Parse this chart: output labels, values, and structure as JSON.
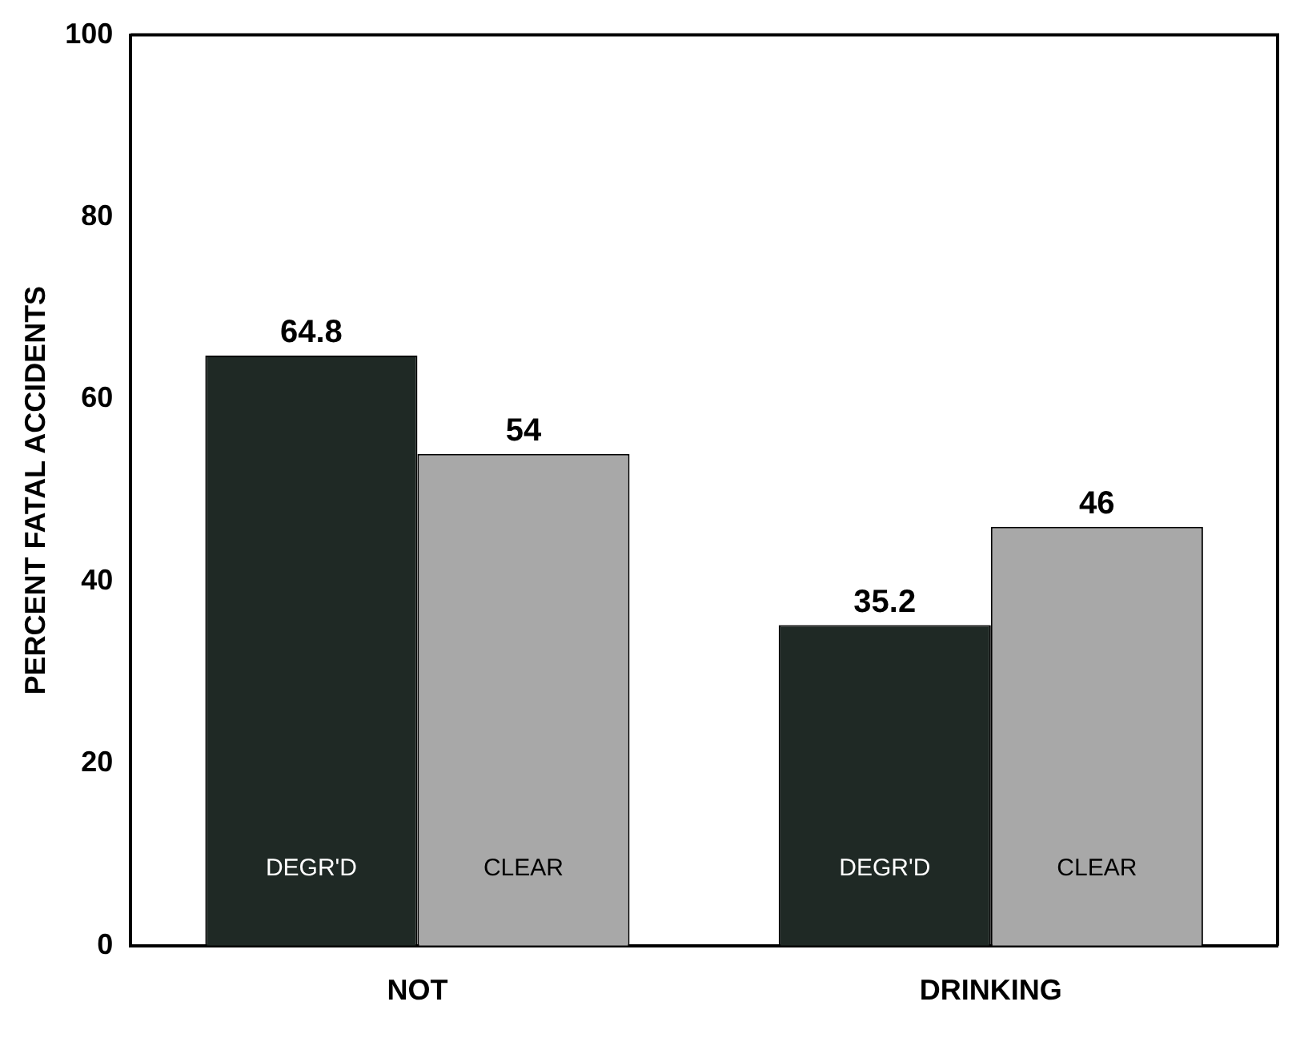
{
  "chart_data": {
    "type": "bar",
    "ylabel": "PERCENT FATAL ACCIDENTS",
    "categories": [
      "NOT",
      "DRINKING"
    ],
    "series": [
      {
        "name": "DEGR'D",
        "color": "#1f2925",
        "values": [
          64.8,
          35.2
        ]
      },
      {
        "name": "CLEAR",
        "color": "#a8a8a8",
        "values": [
          54,
          46
        ]
      }
    ],
    "ylim": [
      0,
      100
    ],
    "yticks": [
      0,
      20,
      40,
      60,
      80,
      100
    ],
    "data_labels": true,
    "grid": false,
    "legend": false
  }
}
